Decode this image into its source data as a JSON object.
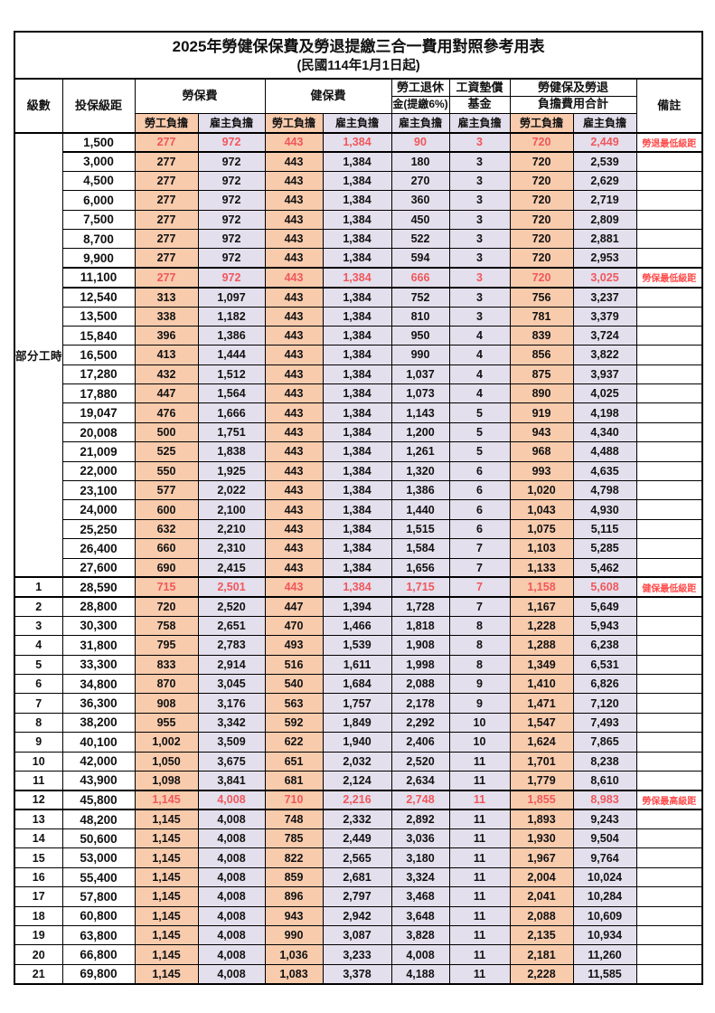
{
  "table": {
    "title": "2025年勞健保保費及勞退提繳三合一費用對照參考用表",
    "subtitle": "(民國114年1月1日起)",
    "columns": {
      "level": "級數",
      "salary_bracket": "投保級距",
      "labor_insurance": "勞保費",
      "health_insurance": "健保費",
      "pension_line1": "勞工退休",
      "pension_line2": "金(提繳6%)",
      "wage_fund_line1": "工資墊償",
      "wage_fund_line2": "基金",
      "total_line1": "勞健保及勞退",
      "total_line2": "負擔費用合計",
      "remark": "備註",
      "employee_share": "勞工負擔",
      "employer_share": "雇主負擔"
    },
    "colors": {
      "employee_bg": "#F8CBAD",
      "employer_bg": "#E4DFEC",
      "highlight_text": "#F0575C",
      "remark_text": "#FF4B4B",
      "border": "#000000"
    },
    "part_time_label": "部分工時",
    "part_time_row_span": 23,
    "row_fields": [
      "level",
      "salary",
      "labor_employee",
      "labor_employer",
      "health_employee",
      "health_employer",
      "pension_employer",
      "wage_fund_employer",
      "total_employee",
      "total_employer",
      "remark",
      "highlight"
    ],
    "rows": [
      [
        "",
        "1,500",
        "277",
        "972",
        "443",
        "1,384",
        "90",
        "3",
        "720",
        "2,449",
        "勞退最低級距",
        true
      ],
      [
        "",
        "3,000",
        "277",
        "972",
        "443",
        "1,384",
        "180",
        "3",
        "720",
        "2,539",
        "",
        false
      ],
      [
        "",
        "4,500",
        "277",
        "972",
        "443",
        "1,384",
        "270",
        "3",
        "720",
        "2,629",
        "",
        false
      ],
      [
        "",
        "6,000",
        "277",
        "972",
        "443",
        "1,384",
        "360",
        "3",
        "720",
        "2,719",
        "",
        false
      ],
      [
        "",
        "7,500",
        "277",
        "972",
        "443",
        "1,384",
        "450",
        "3",
        "720",
        "2,809",
        "",
        false
      ],
      [
        "",
        "8,700",
        "277",
        "972",
        "443",
        "1,384",
        "522",
        "3",
        "720",
        "2,881",
        "",
        false
      ],
      [
        "",
        "9,900",
        "277",
        "972",
        "443",
        "1,384",
        "594",
        "3",
        "720",
        "2,953",
        "",
        false
      ],
      [
        "",
        "11,100",
        "277",
        "972",
        "443",
        "1,384",
        "666",
        "3",
        "720",
        "3,025",
        "勞保最低級距",
        true
      ],
      [
        "",
        "12,540",
        "313",
        "1,097",
        "443",
        "1,384",
        "752",
        "3",
        "756",
        "3,237",
        "",
        false
      ],
      [
        "",
        "13,500",
        "338",
        "1,182",
        "443",
        "1,384",
        "810",
        "3",
        "781",
        "3,379",
        "",
        false
      ],
      [
        "",
        "15,840",
        "396",
        "1,386",
        "443",
        "1,384",
        "950",
        "4",
        "839",
        "3,724",
        "",
        false
      ],
      [
        "",
        "16,500",
        "413",
        "1,444",
        "443",
        "1,384",
        "990",
        "4",
        "856",
        "3,822",
        "",
        false
      ],
      [
        "",
        "17,280",
        "432",
        "1,512",
        "443",
        "1,384",
        "1,037",
        "4",
        "875",
        "3,937",
        "",
        false
      ],
      [
        "",
        "17,880",
        "447",
        "1,564",
        "443",
        "1,384",
        "1,073",
        "4",
        "890",
        "4,025",
        "",
        false
      ],
      [
        "",
        "19,047",
        "476",
        "1,666",
        "443",
        "1,384",
        "1,143",
        "5",
        "919",
        "4,198",
        "",
        false
      ],
      [
        "",
        "20,008",
        "500",
        "1,751",
        "443",
        "1,384",
        "1,200",
        "5",
        "943",
        "4,340",
        "",
        false
      ],
      [
        "",
        "21,009",
        "525",
        "1,838",
        "443",
        "1,384",
        "1,261",
        "5",
        "968",
        "4,488",
        "",
        false
      ],
      [
        "",
        "22,000",
        "550",
        "1,925",
        "443",
        "1,384",
        "1,320",
        "6",
        "993",
        "4,635",
        "",
        false
      ],
      [
        "",
        "23,100",
        "577",
        "2,022",
        "443",
        "1,384",
        "1,386",
        "6",
        "1,020",
        "4,798",
        "",
        false
      ],
      [
        "",
        "24,000",
        "600",
        "2,100",
        "443",
        "1,384",
        "1,440",
        "6",
        "1,043",
        "4,930",
        "",
        false
      ],
      [
        "",
        "25,250",
        "632",
        "2,210",
        "443",
        "1,384",
        "1,515",
        "6",
        "1,075",
        "5,115",
        "",
        false
      ],
      [
        "",
        "26,400",
        "660",
        "2,310",
        "443",
        "1,384",
        "1,584",
        "7",
        "1,103",
        "5,285",
        "",
        false
      ],
      [
        "",
        "27,600",
        "690",
        "2,415",
        "443",
        "1,384",
        "1,656",
        "7",
        "1,133",
        "5,462",
        "",
        false
      ],
      [
        "1",
        "28,590",
        "715",
        "2,501",
        "443",
        "1,384",
        "1,715",
        "7",
        "1,158",
        "5,608",
        "健保最低級距",
        true
      ],
      [
        "2",
        "28,800",
        "720",
        "2,520",
        "447",
        "1,394",
        "1,728",
        "7",
        "1,167",
        "5,649",
        "",
        false
      ],
      [
        "3",
        "30,300",
        "758",
        "2,651",
        "470",
        "1,466",
        "1,818",
        "8",
        "1,228",
        "5,943",
        "",
        false
      ],
      [
        "4",
        "31,800",
        "795",
        "2,783",
        "493",
        "1,539",
        "1,908",
        "8",
        "1,288",
        "6,238",
        "",
        false
      ],
      [
        "5",
        "33,300",
        "833",
        "2,914",
        "516",
        "1,611",
        "1,998",
        "8",
        "1,349",
        "6,531",
        "",
        false
      ],
      [
        "6",
        "34,800",
        "870",
        "3,045",
        "540",
        "1,684",
        "2,088",
        "9",
        "1,410",
        "6,826",
        "",
        false
      ],
      [
        "7",
        "36,300",
        "908",
        "3,176",
        "563",
        "1,757",
        "2,178",
        "9",
        "1,471",
        "7,120",
        "",
        false
      ],
      [
        "8",
        "38,200",
        "955",
        "3,342",
        "592",
        "1,849",
        "2,292",
        "10",
        "1,547",
        "7,493",
        "",
        false
      ],
      [
        "9",
        "40,100",
        "1,002",
        "3,509",
        "622",
        "1,940",
        "2,406",
        "10",
        "1,624",
        "7,865",
        "",
        false
      ],
      [
        "10",
        "42,000",
        "1,050",
        "3,675",
        "651",
        "2,032",
        "2,520",
        "11",
        "1,701",
        "8,238",
        "",
        false
      ],
      [
        "11",
        "43,900",
        "1,098",
        "3,841",
        "681",
        "2,124",
        "2,634",
        "11",
        "1,779",
        "8,610",
        "",
        false
      ],
      [
        "12",
        "45,800",
        "1,145",
        "4,008",
        "710",
        "2,216",
        "2,748",
        "11",
        "1,855",
        "8,983",
        "勞保最高級距",
        true
      ],
      [
        "13",
        "48,200",
        "1,145",
        "4,008",
        "748",
        "2,332",
        "2,892",
        "11",
        "1,893",
        "9,243",
        "",
        false
      ],
      [
        "14",
        "50,600",
        "1,145",
        "4,008",
        "785",
        "2,449",
        "3,036",
        "11",
        "1,930",
        "9,504",
        "",
        false
      ],
      [
        "15",
        "53,000",
        "1,145",
        "4,008",
        "822",
        "2,565",
        "3,180",
        "11",
        "1,967",
        "9,764",
        "",
        false
      ],
      [
        "16",
        "55,400",
        "1,145",
        "4,008",
        "859",
        "2,681",
        "3,324",
        "11",
        "2,004",
        "10,024",
        "",
        false
      ],
      [
        "17",
        "57,800",
        "1,145",
        "4,008",
        "896",
        "2,797",
        "3,468",
        "11",
        "2,041",
        "10,284",
        "",
        false
      ],
      [
        "18",
        "60,800",
        "1,145",
        "4,008",
        "943",
        "2,942",
        "3,648",
        "11",
        "2,088",
        "10,609",
        "",
        false
      ],
      [
        "19",
        "63,800",
        "1,145",
        "4,008",
        "990",
        "3,087",
        "3,828",
        "11",
        "2,135",
        "10,934",
        "",
        false
      ],
      [
        "20",
        "66,800",
        "1,145",
        "4,008",
        "1,036",
        "3,233",
        "4,008",
        "11",
        "2,181",
        "11,260",
        "",
        false
      ],
      [
        "21",
        "69,800",
        "1,145",
        "4,008",
        "1,083",
        "3,378",
        "4,188",
        "11",
        "2,228",
        "11,585",
        "",
        false
      ]
    ]
  }
}
